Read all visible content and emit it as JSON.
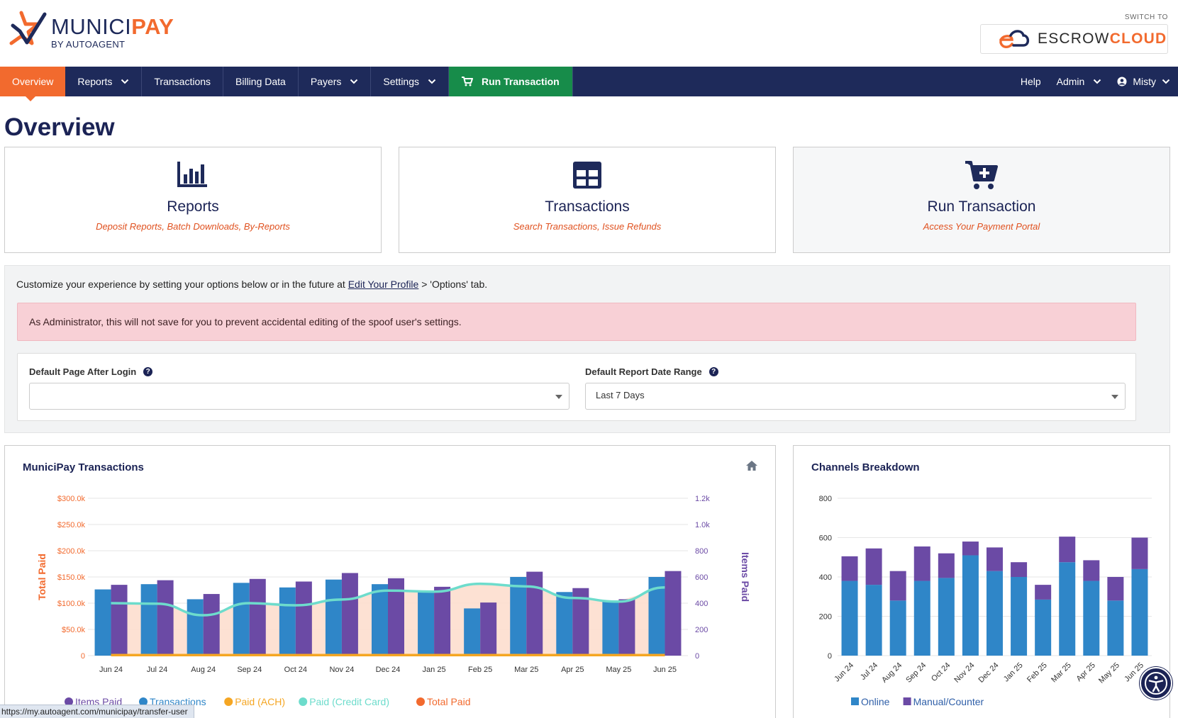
{
  "brand": {
    "name_part1": "MUNICI",
    "name_part2": "PAY",
    "byline": "BY AUTOAGENT",
    "switch_label": "SWITCH TO",
    "escrow_part1": "ESCROW",
    "escrow_part2": "CLOUD",
    "accent": "#f26a2e",
    "navy": "#1e2a5a",
    "green": "#178c4a"
  },
  "nav": {
    "items": [
      {
        "label": "Overview"
      },
      {
        "label": "Reports"
      },
      {
        "label": "Transactions"
      },
      {
        "label": "Billing Data"
      },
      {
        "label": "Payers"
      },
      {
        "label": "Settings"
      },
      {
        "label": "Run Transaction"
      }
    ],
    "right": [
      {
        "label": "Help"
      },
      {
        "label": "Admin"
      },
      {
        "label": "Misty"
      }
    ]
  },
  "page": {
    "title": "Overview"
  },
  "cards": [
    {
      "title": "Reports",
      "subtitle": "Deposit Reports, Batch Downloads, By-Reports",
      "icon": "bar-chart-icon"
    },
    {
      "title": "Transactions",
      "subtitle": "Search Transactions, Issue Refunds",
      "icon": "table-icon"
    },
    {
      "title": "Run Transaction",
      "subtitle": "Access Your Payment Portal",
      "icon": "cart-plus-icon"
    }
  ],
  "options": {
    "intro_before": "Customize your experience by setting your options below or in the future at ",
    "intro_link": "Edit Your Profile",
    "intro_after": " > 'Options' tab.",
    "alert": "As Administrator, this will not save for you to prevent accidental editing of the spoof user's settings.",
    "default_page_label": "Default Page After Login",
    "default_page_value": "",
    "date_range_label": "Default Report Date Range",
    "date_range_value": "Last 7 Days"
  },
  "status_url": "https://my.autoagent.com/municipay/transfer-user",
  "chart_data": [
    {
      "type": "bar",
      "title": "MuniciPay Transactions",
      "categories": [
        "Jun 24",
        "Jul 24",
        "Aug 24",
        "Sep 24",
        "Oct 24",
        "Nov 24",
        "Dec 24",
        "Jan 25",
        "Feb 25",
        "Mar 25",
        "Apr 25",
        "May 25",
        "Jun 25"
      ],
      "ylabel": "Total Paid",
      "y2label": "Items Paid",
      "ylim": [
        0,
        300
      ],
      "y2lim": [
        0,
        1200
      ],
      "y_ticks": [
        "0",
        "$50.0k",
        "$100.0k",
        "$150.0k",
        "$200.0k",
        "$250.0k",
        "$300.0k"
      ],
      "y2_ticks": [
        "0",
        "200",
        "400",
        "600",
        "800",
        "1.0k",
        "1.2k"
      ],
      "series": [
        {
          "name": "Items Paid",
          "axis": "right",
          "kind": "bar",
          "color": "#6b4aa5",
          "values": [
            540,
            575,
            470,
            585,
            565,
            630,
            590,
            525,
            405,
            640,
            515,
            430,
            645
          ]
        },
        {
          "name": "Transactions",
          "axis": "right",
          "kind": "bar",
          "color": "#2f86c8",
          "values": [
            505,
            545,
            430,
            555,
            520,
            580,
            545,
            485,
            360,
            600,
            485,
            420,
            600
          ]
        },
        {
          "name": "Paid (ACH)",
          "axis": "left",
          "kind": "line",
          "color": "#f5a623",
          "values": [
            1,
            1,
            1,
            1,
            1,
            1,
            1,
            1,
            1,
            1,
            1,
            1,
            1
          ]
        },
        {
          "name": "Paid (Credit Card)",
          "axis": "left",
          "kind": "line",
          "color": "#6ddccc",
          "values": [
            100,
            99,
            77,
            100,
            96,
            107,
            124,
            122,
            137,
            132,
            110,
            103,
            130
          ]
        },
        {
          "name": "Total Paid",
          "axis": "left",
          "kind": "area",
          "color": "#f26a2e",
          "values": [
            101,
            100,
            78,
            101,
            97,
            108,
            125,
            123,
            138,
            133,
            111,
            104,
            131
          ]
        }
      ]
    },
    {
      "type": "bar",
      "title": "Channels Breakdown",
      "stacked": true,
      "categories": [
        "Jun 24",
        "Jul 24",
        "Aug 24",
        "Sep 24",
        "Oct 24",
        "Nov 24",
        "Dec 24",
        "Jan 25",
        "Feb 25",
        "Mar 25",
        "Apr 25",
        "May 25",
        "Jun 25"
      ],
      "ylim": [
        0,
        800
      ],
      "y_ticks": [
        "0",
        "200",
        "400",
        "600",
        "800"
      ],
      "series": [
        {
          "name": "Online",
          "color": "#2f86c8",
          "values": [
            380,
            360,
            280,
            380,
            395,
            510,
            430,
            400,
            285,
            475,
            380,
            280,
            440
          ]
        },
        {
          "name": "Manual/Counter",
          "color": "#6b4aa5",
          "values": [
            125,
            185,
            150,
            175,
            125,
            70,
            120,
            75,
            75,
            130,
            105,
            120,
            160
          ]
        }
      ]
    }
  ]
}
